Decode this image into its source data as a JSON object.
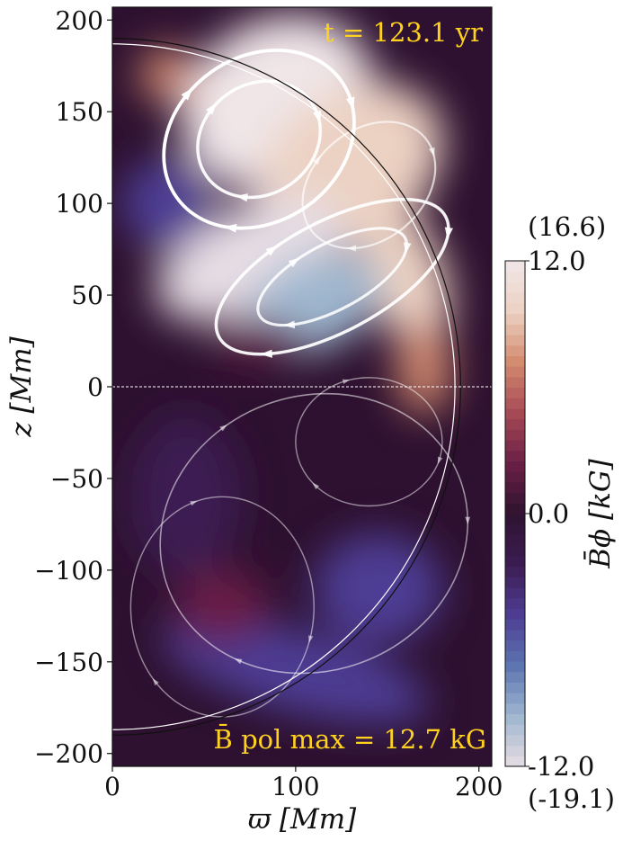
{
  "chart_data": {
    "type": "heatmap",
    "title": "",
    "xlabel": "ϖ [Mm]",
    "ylabel": "z [Mm]",
    "xlim": [
      0,
      207
    ],
    "ylim": [
      -207,
      207
    ],
    "xticks": [
      0,
      100,
      200
    ],
    "yticks": [
      -200,
      -150,
      -100,
      -50,
      0,
      50,
      100,
      150,
      200
    ],
    "time_label": "t = 123.1 yr",
    "bpol_label": "B̄ pol max = 12.7 kG",
    "colorbar": {
      "label": "B̄ϕ [kG]",
      "min": -12.0,
      "max": 12.0,
      "ticks": [
        "-12.0",
        "0.0",
        "12.0"
      ],
      "max_note": "(16.6)",
      "min_note": "(-19.1)",
      "colors": [
        "#e6dde4",
        "#9fb7cf",
        "#5c74b0",
        "#4e3d94",
        "#3c1d52",
        "#2f1330",
        "#6a1f45",
        "#a64a55",
        "#d38a6e",
        "#ecd2c3",
        "#f0e6e8"
      ]
    },
    "sphere_radius_outer": 190,
    "sphere_radius_inner": 187,
    "equator_z": 0,
    "blobs": [
      {
        "x": 90,
        "z": 155,
        "rx": 55,
        "rz": 45,
        "value": 11,
        "rot": -30
      },
      {
        "x": 130,
        "z": 120,
        "rx": 55,
        "rz": 40,
        "value": 10,
        "rot": -35
      },
      {
        "x": 160,
        "z": 60,
        "rx": 22,
        "rz": 40,
        "value": 9,
        "rot": -20
      },
      {
        "x": 170,
        "z": 10,
        "rx": 15,
        "rz": 25,
        "value": 7,
        "rot": 0
      },
      {
        "x": 30,
        "z": 170,
        "rx": 15,
        "rz": 15,
        "value": 6,
        "rot": 0
      },
      {
        "x": 75,
        "z": 70,
        "rx": 55,
        "rz": 28,
        "value": -11,
        "rot": -25
      },
      {
        "x": 110,
        "z": 45,
        "rx": 40,
        "rz": 25,
        "value": -10,
        "rot": -25
      },
      {
        "x": 30,
        "z": 100,
        "rx": 25,
        "rz": 25,
        "value": -6,
        "rot": 0
      },
      {
        "x": 100,
        "z": -155,
        "rx": 75,
        "rz": 22,
        "value": -5,
        "rot": 15
      },
      {
        "x": 145,
        "z": -110,
        "rx": 35,
        "rz": 30,
        "value": -5,
        "rot": 0
      },
      {
        "x": 40,
        "z": -60,
        "rx": 30,
        "rz": 45,
        "value": -3,
        "rot": 0
      },
      {
        "x": 80,
        "z": 25,
        "rx": 25,
        "rz": 10,
        "value": 3,
        "rot": 0
      },
      {
        "x": 60,
        "z": -120,
        "rx": 25,
        "rz": 20,
        "value": 2,
        "rot": 0
      }
    ],
    "field_loops": [
      {
        "x": 80,
        "z": 135,
        "rx": 55,
        "rz": 45,
        "rot": -35,
        "strength": 1.0
      },
      {
        "x": 80,
        "z": 135,
        "rx": 35,
        "rz": 30,
        "rot": -35,
        "strength": 0.9
      },
      {
        "x": 120,
        "z": 60,
        "rx": 70,
        "rz": 30,
        "rot": -28,
        "strength": 0.9
      },
      {
        "x": 120,
        "z": 60,
        "rx": 45,
        "rz": 18,
        "rot": -28,
        "strength": 0.8
      },
      {
        "x": 140,
        "z": 110,
        "rx": 40,
        "rz": 30,
        "rot": -40,
        "strength": 0.5
      },
      {
        "x": 110,
        "z": -80,
        "rx": 85,
        "rz": 75,
        "rot": -20,
        "strength": 0.3
      },
      {
        "x": 60,
        "z": -120,
        "rx": 50,
        "rz": 60,
        "rot": 0,
        "strength": 0.25
      },
      {
        "x": 140,
        "z": -30,
        "rx": 40,
        "rz": 35,
        "rot": 0,
        "strength": 0.25
      }
    ]
  }
}
